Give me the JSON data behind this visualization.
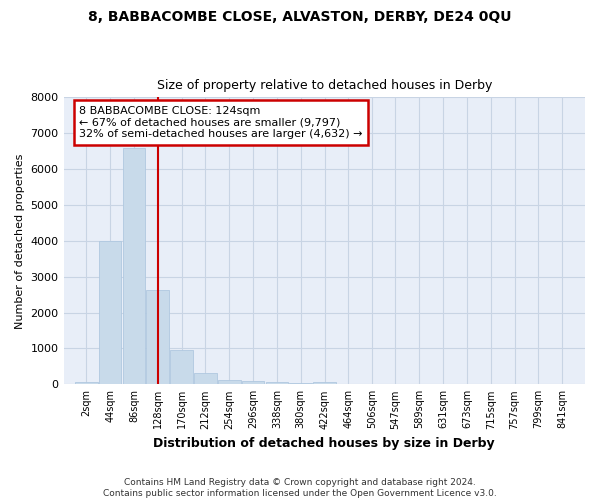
{
  "title1": "8, BABBACOMBE CLOSE, ALVASTON, DERBY, DE24 0QU",
  "title2": "Size of property relative to detached houses in Derby",
  "xlabel": "Distribution of detached houses by size in Derby",
  "ylabel": "Number of detached properties",
  "bar_color": "#c8daea",
  "bar_edge_color": "#b0c8e0",
  "grid_color": "#c8d4e4",
  "vline_color": "#cc0000",
  "vline_x": 128,
  "categories": [
    2,
    44,
    86,
    128,
    170,
    212,
    254,
    296,
    338,
    380,
    422,
    464,
    506,
    547,
    589,
    631,
    673,
    715,
    757,
    799,
    841
  ],
  "bin_width": 40,
  "values": [
    60,
    4000,
    6580,
    2620,
    960,
    320,
    130,
    80,
    60,
    50,
    55,
    0,
    0,
    0,
    0,
    0,
    0,
    0,
    0,
    0,
    0
  ],
  "ylim": [
    0,
    8000
  ],
  "yticks": [
    0,
    1000,
    2000,
    3000,
    4000,
    5000,
    6000,
    7000,
    8000
  ],
  "annotation_text": "8 BABBACOMBE CLOSE: 124sqm\n← 67% of detached houses are smaller (9,797)\n32% of semi-detached houses are larger (4,632) →",
  "annotation_box_color": "#ffffff",
  "annotation_box_edge_color": "#cc0000",
  "footer_line1": "Contains HM Land Registry data © Crown copyright and database right 2024.",
  "footer_line2": "Contains public sector information licensed under the Open Government Licence v3.0.",
  "background_color": "#ffffff",
  "plot_bg_color": "#e8eef8"
}
